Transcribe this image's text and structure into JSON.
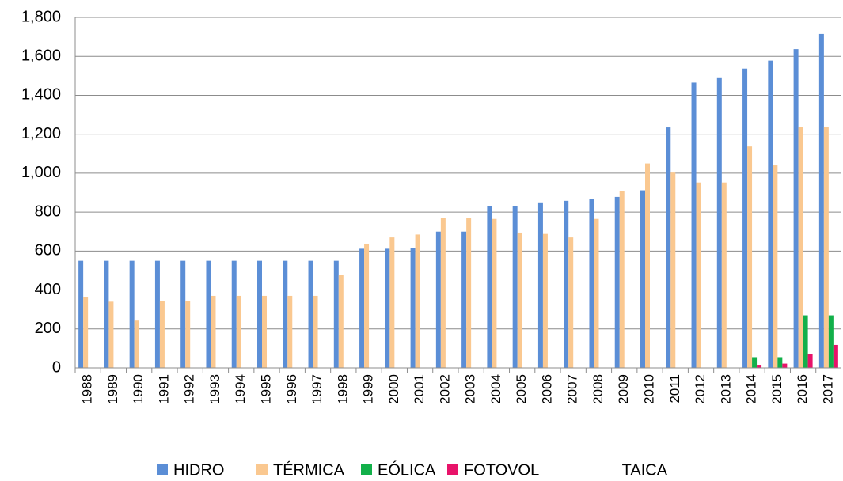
{
  "chart_data": {
    "type": "bar",
    "categories": [
      "1988",
      "1989",
      "1990",
      "1991",
      "1992",
      "1993",
      "1994",
      "1995",
      "1996",
      "1997",
      "1998",
      "1999",
      "2000",
      "2001",
      "2002",
      "2003",
      "2004",
      "2005",
      "2006",
      "2007",
      "2008",
      "2009",
      "2010",
      "2011",
      "2012",
      "2013",
      "2014",
      "2015",
      "2016",
      "2017"
    ],
    "series": [
      {
        "name": "HIDRO",
        "color": "#5b8ed6",
        "values": [
          550,
          550,
          550,
          550,
          550,
          550,
          550,
          550,
          550,
          550,
          550,
          612,
          612,
          615,
          700,
          700,
          830,
          830,
          850,
          858,
          868,
          878,
          912,
          1235,
          1465,
          1492,
          1537,
          1578,
          1637,
          1715
        ]
      },
      {
        "name": "TÉRMICA",
        "color": "#fac890",
        "values": [
          362,
          340,
          243,
          343,
          343,
          370,
          370,
          370,
          370,
          370,
          477,
          638,
          670,
          685,
          770,
          770,
          765,
          695,
          688,
          670,
          765,
          910,
          1050,
          1003,
          952,
          952,
          1137,
          1040,
          1237,
          1237
        ]
      },
      {
        "name": "EÓLICA",
        "color": "#12b04a",
        "values": [
          0,
          0,
          0,
          0,
          0,
          0,
          0,
          0,
          0,
          0,
          0,
          0,
          0,
          0,
          0,
          0,
          0,
          0,
          0,
          0,
          0,
          0,
          0,
          0,
          0,
          0,
          55,
          55,
          270,
          270
        ]
      },
      {
        "name": "FOTOVOL TAICA",
        "color": "#e8136a",
        "values": [
          0,
          0,
          0,
          0,
          0,
          0,
          0,
          0,
          0,
          0,
          0,
          0,
          0,
          0,
          0,
          0,
          0,
          0,
          0,
          0,
          0,
          0,
          0,
          0,
          0,
          0,
          12,
          22,
          70,
          118
        ]
      }
    ],
    "ylim": [
      0,
      1800
    ],
    "yticks": [
      0,
      200,
      400,
      600,
      800,
      {
        "value": 1000,
        "label": "1,000"
      },
      {
        "value": 1200,
        "label": "1,200"
      },
      {
        "value": 1400,
        "label": "1,400"
      },
      {
        "value": 1600,
        "label": "1,600"
      },
      {
        "value": 1800,
        "label": "1,800"
      }
    ],
    "grid": true,
    "legend": "bottom"
  }
}
